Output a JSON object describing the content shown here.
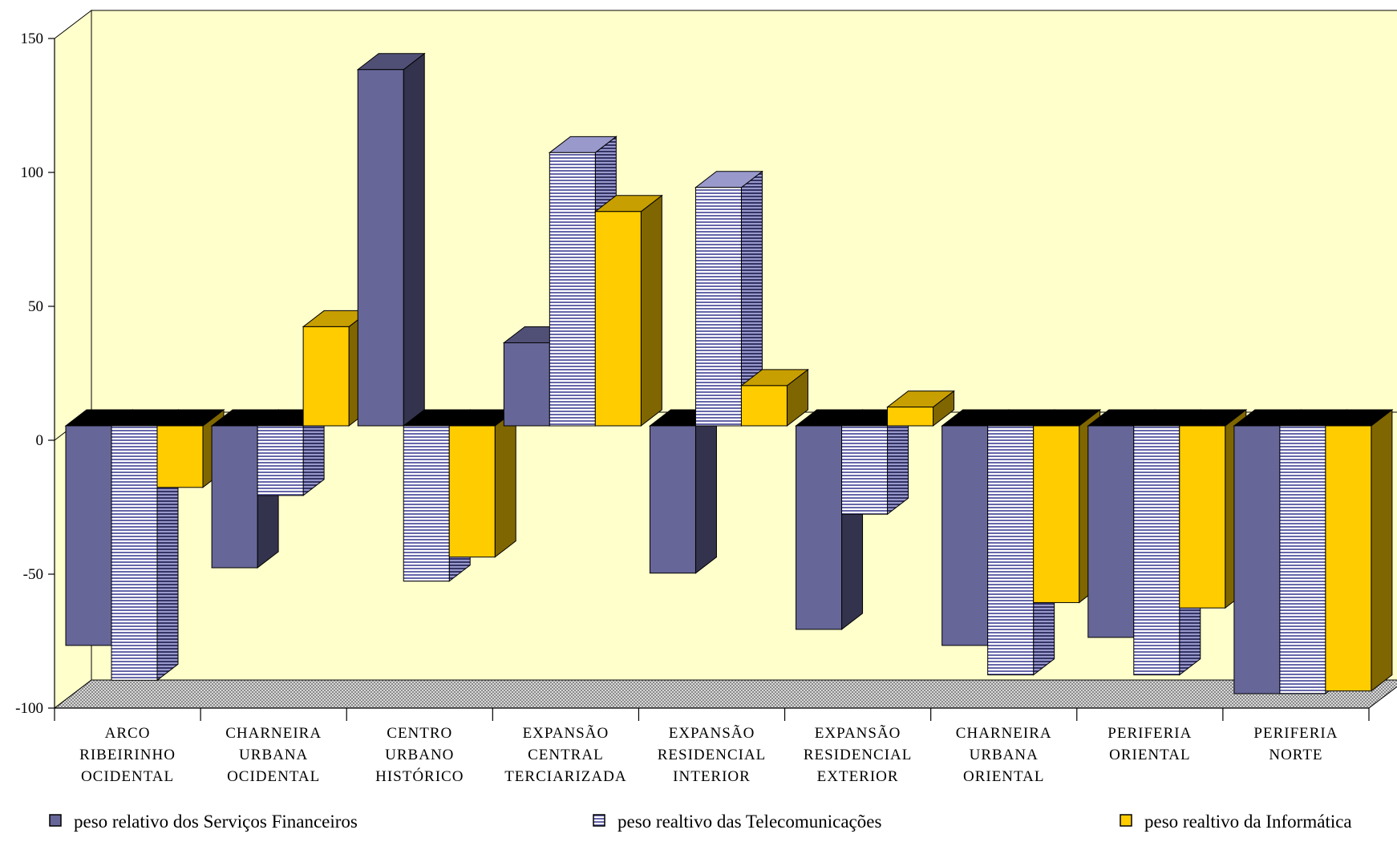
{
  "chart_data": {
    "type": "bar",
    "title": "",
    "xlabel": "",
    "ylabel": "",
    "ylim": [
      -100,
      150
    ],
    "yticks": [
      -100,
      -50,
      0,
      50,
      100,
      150
    ],
    "grid": false,
    "legend_position": "bottom",
    "categories": [
      [
        "ARCO",
        "RIBEIRINHO",
        "OCIDENTAL"
      ],
      [
        "CHARNEIRA",
        "URBANA",
        "OCIDENTAL"
      ],
      [
        "CENTRO",
        "URBANO",
        "HISTÓRICO"
      ],
      [
        "EXPANSÃO",
        "CENTRAL",
        "TERCIARIZADA"
      ],
      [
        "EXPANSÃO",
        "RESIDENCIAL",
        "INTERIOR"
      ],
      [
        "EXPANSÃO",
        "RESIDENCIAL",
        "EXTERIOR"
      ],
      [
        "CHARNEIRA",
        "URBANA",
        "ORIENTAL"
      ],
      [
        "PERIFERIA",
        "ORIENTAL"
      ],
      [
        "PERIFERIA",
        "NORTE"
      ]
    ],
    "series": [
      {
        "name": "peso relativo dos Serviços Financeiros",
        "color": "#666699",
        "pattern": "solid",
        "values": [
          -82,
          -53,
          133,
          31,
          -55,
          -76,
          -82,
          -79,
          -100
        ]
      },
      {
        "name": "peso realtivo das Telecomunicações",
        "color": "#ccccff",
        "pattern": "horizontal-lines",
        "values": [
          -95,
          -26,
          -58,
          102,
          89,
          -33,
          -93,
          -93,
          -100
        ]
      },
      {
        "name": "peso realtivo da Informática",
        "color": "#ffcc00",
        "pattern": "solid",
        "values": [
          -23,
          37,
          -49,
          80,
          15,
          7,
          -66,
          -68,
          -99
        ]
      }
    ],
    "colors": {
      "wall": "#ffffcc",
      "floor": "#c0c0c0"
    }
  }
}
